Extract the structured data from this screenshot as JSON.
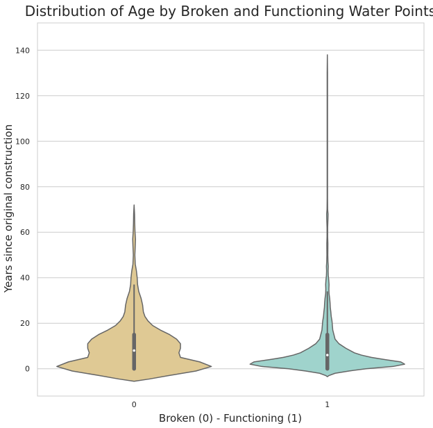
{
  "chart_data": {
    "type": "violin",
    "title": "Distribution of Age by Broken and Functioning Water Points",
    "xlabel": "Broken (0) - Functioning (1)",
    "ylabel": "Years since original construction",
    "categories": [
      "0",
      "1"
    ],
    "ylim": [
      -12,
      152
    ],
    "yticks": [
      0,
      20,
      40,
      60,
      80,
      100,
      120,
      140
    ],
    "ytick_labels": [
      "0",
      "20",
      "40",
      "60",
      "80",
      "100",
      "120",
      "140"
    ],
    "grid": "horizontal",
    "colors": {
      "0": "#DFC994",
      "1": "#9FD3CC",
      "outline": "#666666",
      "inner": "#666666"
    },
    "violins": [
      {
        "category": "0",
        "min": 0,
        "q1": 0,
        "median": 8,
        "q3": 15,
        "whisker_high": 37,
        "max": 72,
        "kde_min": -5.5,
        "kde_max": 72,
        "density": [
          [
            -5.5,
            0.0
          ],
          [
            -4.5,
            0.2
          ],
          [
            -3,
            0.45
          ],
          [
            -1,
            0.8
          ],
          [
            1,
            1.0
          ],
          [
            3,
            0.85
          ],
          [
            5,
            0.6
          ],
          [
            7,
            0.58
          ],
          [
            9,
            0.6
          ],
          [
            11,
            0.6
          ],
          [
            13,
            0.55
          ],
          [
            15,
            0.46
          ],
          [
            17,
            0.34
          ],
          [
            19,
            0.24
          ],
          [
            21,
            0.18
          ],
          [
            23,
            0.14
          ],
          [
            25,
            0.12
          ],
          [
            28,
            0.11
          ],
          [
            31,
            0.09
          ],
          [
            34,
            0.06
          ],
          [
            37,
            0.045
          ],
          [
            40,
            0.04
          ],
          [
            43,
            0.03
          ],
          [
            46,
            0.015
          ],
          [
            50,
            0.01
          ],
          [
            54,
            0.015
          ],
          [
            57,
            0.018
          ],
          [
            60,
            0.012
          ],
          [
            64,
            0.008
          ],
          [
            68,
            0.006
          ],
          [
            72,
            0.0
          ]
        ]
      },
      {
        "category": "1",
        "min": 0,
        "q1": 0,
        "median": 6,
        "q3": 15,
        "whisker_high": 34,
        "max": 138,
        "kde_min": -3.5,
        "kde_max": 138,
        "density": [
          [
            -3.5,
            0.0
          ],
          [
            -3,
            0.02
          ],
          [
            -2,
            0.1
          ],
          [
            -1,
            0.28
          ],
          [
            0,
            0.5
          ],
          [
            1,
            0.85
          ],
          [
            2,
            1.0
          ],
          [
            3,
            0.95
          ],
          [
            4,
            0.75
          ],
          [
            5,
            0.57
          ],
          [
            6,
            0.44
          ],
          [
            7,
            0.35
          ],
          [
            9,
            0.24
          ],
          [
            11,
            0.15
          ],
          [
            13,
            0.1
          ],
          [
            15,
            0.085
          ],
          [
            17,
            0.07
          ],
          [
            19,
            0.065
          ],
          [
            21,
            0.06
          ],
          [
            23,
            0.05
          ],
          [
            25,
            0.045
          ],
          [
            27,
            0.038
          ],
          [
            29,
            0.035
          ],
          [
            31,
            0.03
          ],
          [
            33,
            0.022
          ],
          [
            35,
            0.02
          ],
          [
            37,
            0.022
          ],
          [
            39,
            0.018
          ],
          [
            41,
            0.012
          ],
          [
            43,
            0.01
          ],
          [
            45,
            0.012
          ],
          [
            47,
            0.008
          ],
          [
            50,
            0.006
          ],
          [
            55,
            0.007
          ],
          [
            58,
            0.004
          ],
          [
            62,
            0.004
          ],
          [
            66,
            0.008
          ],
          [
            68,
            0.009
          ],
          [
            70,
            0.004
          ],
          [
            75,
            0.0025
          ],
          [
            85,
            0.0025
          ],
          [
            100,
            0.0025
          ],
          [
            115,
            0.0025
          ],
          [
            130,
            0.0025
          ],
          [
            138,
            0.0
          ]
        ]
      }
    ]
  }
}
